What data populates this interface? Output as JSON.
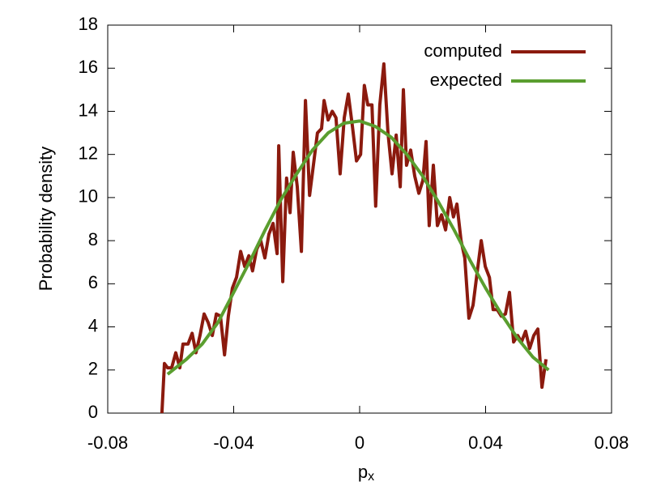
{
  "chart_data": {
    "type": "line",
    "x_label": "p",
    "x_label_subscript": "x",
    "y_label": "Probability density",
    "xlim": [
      -0.08,
      0.08
    ],
    "xticks": [
      -0.08,
      -0.04,
      0,
      0.04,
      0.08
    ],
    "ylim": [
      0,
      18
    ],
    "yticks": [
      0,
      2,
      4,
      6,
      8,
      10,
      12,
      14,
      16,
      18
    ],
    "legend": "top-right",
    "grid": false,
    "series": [
      {
        "name": "computed",
        "color": "#8b1a0e",
        "x": [
          -0.0628,
          -0.062,
          -0.061,
          -0.0597,
          -0.0584,
          -0.0571,
          -0.0561,
          -0.0545,
          -0.0532,
          -0.052,
          -0.0507,
          -0.0494,
          -0.0481,
          -0.0468,
          -0.0455,
          -0.0442,
          -0.0429,
          -0.0417,
          -0.0404,
          -0.0391,
          -0.0378,
          -0.0365,
          -0.0352,
          -0.034,
          -0.0327,
          -0.0314,
          -0.0301,
          -0.0288,
          -0.0275,
          -0.0262,
          -0.0257,
          -0.0244,
          -0.0232,
          -0.0221,
          -0.0211,
          -0.0198,
          -0.0185,
          -0.0172,
          -0.0159,
          -0.0147,
          -0.0134,
          -0.0121,
          -0.0113,
          -0.01,
          -0.0087,
          -0.0075,
          -0.0062,
          -0.0049,
          -0.0036,
          -0.0023,
          -0.001,
          0.0003,
          0.0015,
          0.0026,
          0.0039,
          0.0051,
          0.0064,
          0.0077,
          0.009,
          0.0103,
          0.0116,
          0.0129,
          0.0139,
          0.0149,
          0.0162,
          0.0175,
          0.0188,
          0.0201,
          0.0211,
          0.0221,
          0.0234,
          0.0247,
          0.026,
          0.0273,
          0.0286,
          0.0298,
          0.0309,
          0.0322,
          0.0334,
          0.0347,
          0.036,
          0.0373,
          0.0386,
          0.0399,
          0.0412,
          0.0424,
          0.0437,
          0.045,
          0.0463,
          0.0476,
          0.0489,
          0.0502,
          0.0514,
          0.0527,
          0.054,
          0.0553,
          0.0566,
          0.0579,
          0.0592
        ],
        "values": [
          0,
          2.3,
          2.1,
          2.1,
          2.8,
          2.1,
          3.2,
          3.2,
          3.7,
          2.8,
          3.6,
          4.6,
          4.2,
          3.6,
          4.6,
          4.5,
          2.7,
          4.5,
          5.8,
          6.3,
          7.5,
          6.8,
          7.3,
          6.6,
          7.6,
          8.0,
          7.2,
          8.3,
          8.8,
          7.4,
          12.4,
          6.1,
          10.9,
          9.3,
          12.1,
          10.5,
          7.5,
          14.5,
          10.1,
          11.5,
          13.0,
          13.2,
          14.5,
          13.6,
          14.0,
          13.7,
          11.1,
          13.7,
          14.8,
          13.3,
          11.7,
          12.0,
          15.2,
          14.3,
          14.3,
          9.6,
          14.3,
          16.2,
          13.0,
          11.1,
          12.9,
          10.5,
          15.0,
          11.5,
          12.2,
          11.0,
          10.2,
          10.8,
          12.6,
          8.7,
          11.5,
          8.7,
          9.2,
          8.5,
          10.0,
          9.1,
          9.7,
          8.0,
          7.2,
          4.4,
          5.0,
          6.5,
          8.0,
          6.8,
          6.3,
          4.8,
          4.8,
          4.5,
          4.6,
          5.6,
          3.3,
          3.6,
          3.3,
          3.8,
          3.0,
          3.6,
          3.9,
          1.2,
          2.5
        ]
      },
      {
        "name": "expected",
        "color": "#5a9e2f",
        "x": [
          -0.061,
          -0.055,
          -0.05,
          -0.045,
          -0.04,
          -0.035,
          -0.03,
          -0.025,
          -0.02,
          -0.015,
          -0.01,
          -0.005,
          0,
          0.005,
          0.01,
          0.015,
          0.02,
          0.025,
          0.03,
          0.035,
          0.04,
          0.045,
          0.05,
          0.055,
          0.06
        ],
        "values": [
          1.8,
          2.5,
          3.2,
          4.2,
          5.6,
          7.0,
          8.5,
          9.9,
          11.1,
          12.2,
          13.0,
          13.45,
          13.55,
          13.3,
          12.8,
          12.0,
          11.0,
          9.8,
          8.5,
          7.1,
          5.8,
          4.6,
          3.5,
          2.6,
          2.0
        ]
      }
    ]
  }
}
